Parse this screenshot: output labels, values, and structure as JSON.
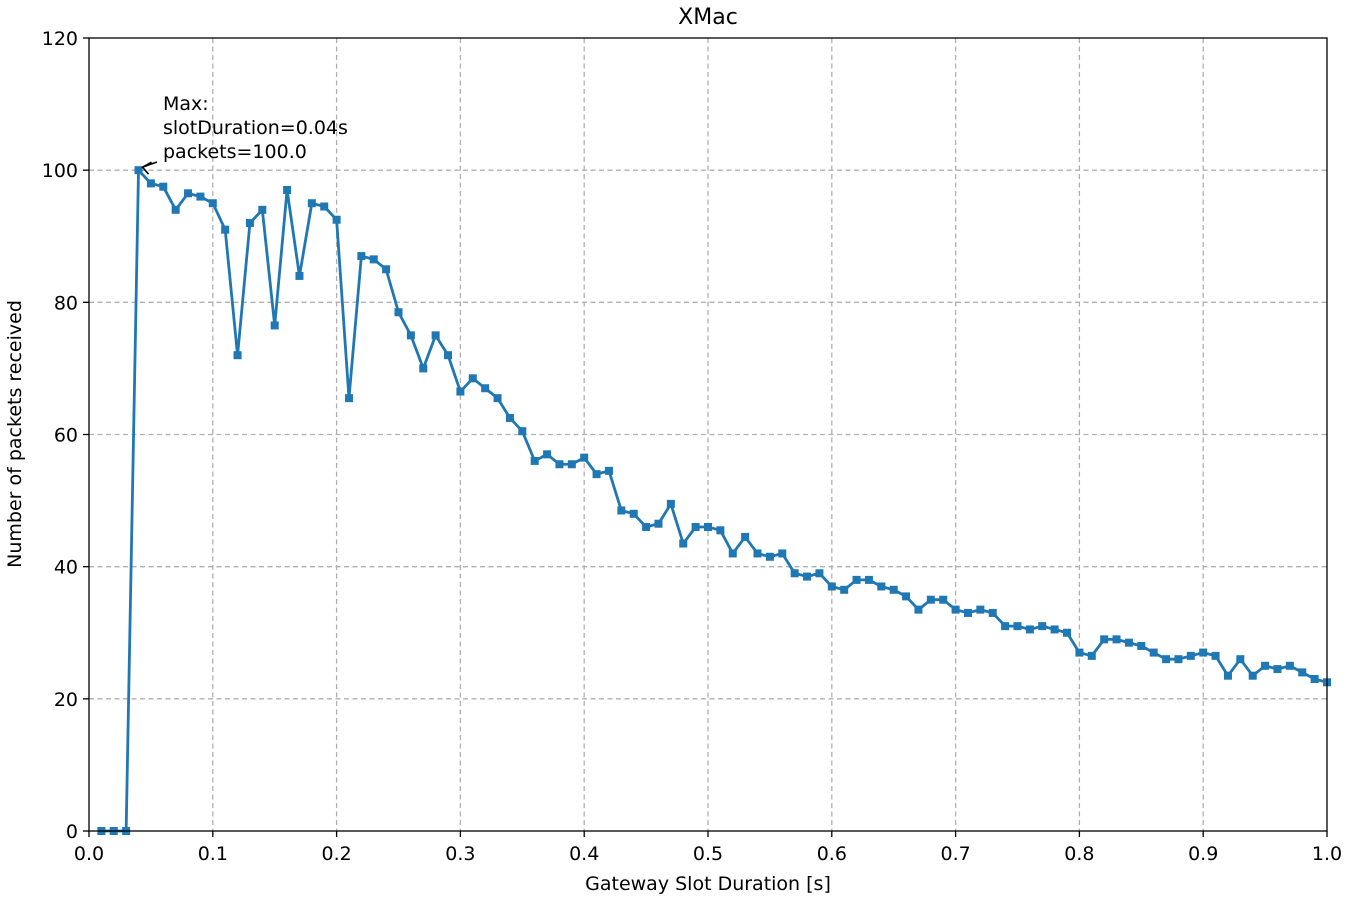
{
  "chart_data": {
    "type": "line",
    "title": "XMac",
    "xlabel": "Gateway Slot Duration [s]",
    "ylabel": "Number of packets received",
    "xlim": [
      0.0,
      1.0
    ],
    "ylim": [
      0,
      120
    ],
    "x_ticks": [
      "0.0",
      "0.1",
      "0.2",
      "0.3",
      "0.4",
      "0.5",
      "0.6",
      "0.7",
      "0.8",
      "0.9",
      "1.0"
    ],
    "y_ticks": [
      "0",
      "20",
      "40",
      "60",
      "80",
      "100",
      "120"
    ],
    "grid": true,
    "color": "#1f77b4",
    "marker": "square",
    "annotation": {
      "lines": [
        "Max:",
        "slotDuration=0.04s",
        "packets=100.0"
      ],
      "x": 0.04,
      "y": 100.0
    },
    "series": [
      {
        "x": [
          0.01,
          0.02,
          0.03,
          0.04,
          0.05,
          0.06,
          0.07,
          0.08,
          0.09,
          0.1,
          0.11,
          0.12,
          0.13,
          0.14,
          0.15,
          0.16,
          0.17,
          0.18,
          0.19,
          0.2,
          0.21,
          0.22,
          0.23,
          0.24,
          0.25,
          0.26,
          0.27,
          0.28,
          0.29,
          0.3,
          0.31,
          0.32,
          0.33,
          0.34,
          0.35,
          0.36,
          0.37,
          0.38,
          0.39,
          0.4,
          0.41,
          0.42,
          0.43,
          0.44,
          0.45,
          0.46,
          0.47,
          0.48,
          0.49,
          0.5,
          0.51,
          0.52,
          0.53,
          0.54,
          0.55,
          0.56,
          0.57,
          0.58,
          0.59,
          0.6,
          0.61,
          0.62,
          0.63,
          0.64,
          0.65,
          0.66,
          0.67,
          0.68,
          0.69,
          0.7,
          0.71,
          0.72,
          0.73,
          0.74,
          0.75,
          0.76,
          0.77,
          0.78,
          0.79,
          0.8,
          0.81,
          0.82,
          0.83,
          0.84,
          0.85,
          0.86,
          0.87,
          0.88,
          0.89,
          0.9,
          0.91,
          0.92,
          0.93,
          0.94,
          0.95,
          0.96,
          0.97,
          0.98,
          0.99,
          1.0
        ],
        "y": [
          0,
          0,
          0,
          100,
          98,
          97.5,
          94,
          96.5,
          96,
          95,
          91,
          72,
          92,
          94,
          76.5,
          97,
          84,
          95,
          94.5,
          92.5,
          65.5,
          87,
          86.5,
          85,
          78.5,
          75,
          70,
          75,
          72,
          66.5,
          68.5,
          67,
          65.5,
          62.5,
          60.5,
          56,
          57,
          55.5,
          55.5,
          56.5,
          54,
          54.5,
          48.5,
          48,
          46,
          46.5,
          49.5,
          43.5,
          46,
          46,
          45.5,
          42,
          44.5,
          42,
          41.5,
          42,
          39,
          38.5,
          39,
          37,
          36.5,
          38,
          38,
          37,
          36.5,
          35.5,
          33.5,
          35,
          35,
          33.5,
          33,
          33.5,
          33,
          31,
          31,
          30.5,
          31,
          30.5,
          30,
          27,
          26.5,
          29,
          29,
          28.5,
          28,
          27,
          26,
          26,
          26.5,
          27,
          26.5,
          23.5,
          26,
          23.5,
          25,
          24.5,
          25,
          24,
          23,
          22.5
        ]
      }
    ]
  }
}
